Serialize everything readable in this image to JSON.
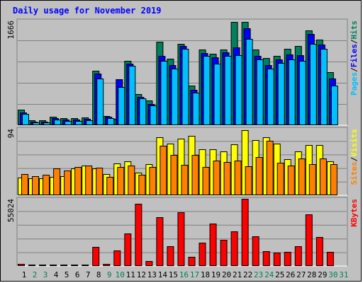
{
  "chart_data": {
    "type": "bar",
    "title": "Daily usage for November 2019",
    "days": [
      "1",
      "2",
      "3",
      "4",
      "5",
      "6",
      "7",
      "8",
      "9",
      "10",
      "11",
      "12",
      "13",
      "14",
      "15",
      "16",
      "17",
      "18",
      "19",
      "20",
      "21",
      "22",
      "23",
      "24",
      "25",
      "26",
      "27",
      "28",
      "29",
      "30",
      "31"
    ],
    "weekend_days": [
      "2",
      "3",
      "9",
      "10",
      "16",
      "17",
      "23",
      "24",
      "30",
      "31"
    ],
    "panels": [
      {
        "id": "hits-files-pages",
        "ymax_label": "1666",
        "ymax": 1666,
        "legend": [
          "Pages",
          "/",
          "Files",
          "/",
          "Hits"
        ],
        "legend_colors": [
          "#00c0ff",
          "#000000",
          "#0000ff",
          "#000000",
          "#00805c"
        ],
        "series": [
          {
            "name": "Hits",
            "color": "#00805c",
            "values": [
              250,
              80,
              80,
              140,
              110,
              110,
              120,
              870,
              150,
              100,
              1020,
              500,
              390,
              1330,
              1060,
              1300,
              630,
              1200,
              1140,
              1200,
              1640,
              1640,
              1200,
              1070,
              1100,
              1220,
              1260,
              1510,
              1360,
              840,
              0
            ]
          },
          {
            "name": "Files",
            "color": "#0000ff",
            "values": [
              200,
              60,
              60,
              110,
              90,
              90,
              100,
              820,
              130,
              730,
              980,
              450,
              340,
              1100,
              960,
              1260,
              560,
              1150,
              1080,
              1160,
              1240,
              1540,
              1100,
              960,
              1050,
              1130,
              1120,
              1450,
              1280,
              740,
              0
            ]
          },
          {
            "name": "Pages",
            "color": "#00c0ff",
            "values": [
              180,
              50,
              40,
              90,
              70,
              70,
              80,
              740,
              110,
              610,
              950,
              430,
              320,
              1020,
              900,
              1220,
              520,
              1100,
              980,
              1100,
              1120,
              1370,
              1050,
              900,
              990,
              1050,
              1020,
              1290,
              1220,
              630,
              0
            ]
          }
        ]
      },
      {
        "id": "visits-sites",
        "ymax_label": "94",
        "ymax": 94,
        "legend": [
          "Sites",
          "/",
          "Visits"
        ],
        "legend_colors": [
          "#ff8000",
          "#000000",
          "#ffff00"
        ],
        "series": [
          {
            "name": "Visits",
            "color": "#ffff00",
            "values": [
              25,
              24,
              24,
              26,
              27,
              38,
              42,
              38,
              30,
              45,
              48,
              32,
              44,
              82,
              73,
              80,
              84,
              65,
              65,
              62,
              72,
              92,
              78,
              82,
              73,
              51,
              62,
              71,
              71,
              48,
              0
            ]
          },
          {
            "name": "Sites",
            "color": "#ff8000",
            "values": [
              30,
              27,
              29,
              38,
              35,
              40,
              42,
              39,
              26,
              40,
              42,
              29,
              40,
              70,
              57,
              43,
              57,
              40,
              49,
              47,
              49,
              41,
              54,
              77,
              46,
              42,
              52,
              44,
              52,
              44,
              0
            ]
          }
        ]
      },
      {
        "id": "kbytes",
        "ymax_label": "55024",
        "ymax": 55024,
        "legend": [
          "KBytes"
        ],
        "legend_colors": [
          "#ff0000"
        ],
        "series": [
          {
            "name": "KBytes",
            "color": "#ff0000",
            "values": [
              1500,
              800,
              600,
              900,
              700,
              700,
              700,
              15400,
              1700,
              12500,
              26500,
              51000,
              3800,
              39900,
              16300,
              44000,
              7800,
              19300,
              35000,
              21300,
              28500,
              55024,
              24500,
              12300,
              11000,
              11600,
              16300,
              42300,
              23500,
              11300,
              0
            ]
          }
        ]
      }
    ]
  }
}
